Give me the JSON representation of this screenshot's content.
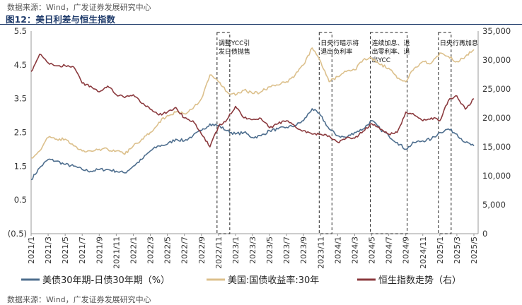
{
  "source_top": "数据来源：Wind，广发证券发展研究中心",
  "source_bottom": "数据来源：Wind，广发证券发展研究中心",
  "chart_data": {
    "type": "line",
    "title": "图12：美日利差与恒生指数",
    "x_tick_labels": [
      "2021/1",
      "2021/3",
      "2021/5",
      "2021/7",
      "2021/9",
      "2021/11",
      "2022/1",
      "2022/3",
      "2022/5",
      "2022/7",
      "2022/9",
      "2022/11",
      "2023/1",
      "2023/3",
      "2023/5",
      "2023/7",
      "2023/9",
      "2023/11",
      "2024/1",
      "2024/3",
      "2024/5",
      "2024/7",
      "2024/9",
      "2024/11",
      "2025/1",
      "2025/3",
      "2025/5"
    ],
    "y_left": {
      "ticks": [
        "5.5",
        "4.5",
        "3.5",
        "2.5",
        "1.5",
        "0.5",
        "(0.5)"
      ],
      "ylim": [
        -0.5,
        5.5
      ]
    },
    "y_right": {
      "ticks": [
        "35,000",
        "30,000",
        "25,000",
        "20,000",
        "15,000",
        "10,000",
        "5,000",
        "0"
      ],
      "ylim": [
        0,
        35000
      ]
    },
    "legend_position": "bottom",
    "colors": {
      "spread": "#4e6e8e",
      "us30y": "#dcc08c",
      "hsi": "#8b3a3e"
    },
    "series": [
      {
        "name": "美债30年期-日债30年期（%）",
        "axis": "left",
        "color": "#4e6e8e",
        "x": [
          "2021/1",
          "2021/2",
          "2021/3",
          "2021/4",
          "2021/5",
          "2021/6",
          "2021/7",
          "2021/8",
          "2021/9",
          "2021/10",
          "2021/11",
          "2021/12",
          "2022/1",
          "2022/2",
          "2022/3",
          "2022/4",
          "2022/5",
          "2022/6",
          "2022/7",
          "2022/8",
          "2022/9",
          "2022/10",
          "2022/11",
          "2022/12",
          "2023/1",
          "2023/2",
          "2023/3",
          "2023/4",
          "2023/5",
          "2023/6",
          "2023/7",
          "2023/8",
          "2023/9",
          "2023/10",
          "2023/11",
          "2023/12",
          "2024/1",
          "2024/2",
          "2024/3",
          "2024/4",
          "2024/5",
          "2024/6",
          "2024/7",
          "2024/8",
          "2024/9",
          "2024/10",
          "2024/11",
          "2024/12",
          "2025/1",
          "2025/2",
          "2025/3",
          "2025/4",
          "2025/5"
        ],
        "values": [
          1.1,
          1.45,
          1.7,
          1.65,
          1.55,
          1.5,
          1.4,
          1.35,
          1.4,
          1.4,
          1.35,
          1.3,
          1.5,
          1.7,
          1.95,
          2.1,
          2.15,
          2.3,
          2.25,
          2.4,
          2.55,
          2.75,
          2.7,
          2.55,
          2.45,
          2.5,
          2.35,
          2.4,
          2.55,
          2.6,
          2.65,
          2.7,
          2.85,
          3.2,
          3.0,
          2.6,
          2.4,
          2.35,
          2.5,
          2.6,
          2.85,
          2.6,
          2.4,
          2.2,
          2.0,
          2.2,
          2.25,
          2.3,
          2.5,
          2.6,
          2.45,
          2.2,
          2.1
        ]
      },
      {
        "name": "美国:国债收益率:30年",
        "axis": "left",
        "color": "#dcc08c",
        "x": [
          "2021/1",
          "2021/2",
          "2021/3",
          "2021/4",
          "2021/5",
          "2021/6",
          "2021/7",
          "2021/8",
          "2021/9",
          "2021/10",
          "2021/11",
          "2021/12",
          "2022/1",
          "2022/2",
          "2022/3",
          "2022/4",
          "2022/5",
          "2022/6",
          "2022/7",
          "2022/8",
          "2022/9",
          "2022/10",
          "2022/11",
          "2022/12",
          "2023/1",
          "2023/2",
          "2023/3",
          "2023/4",
          "2023/5",
          "2023/6",
          "2023/7",
          "2023/8",
          "2023/9",
          "2023/10",
          "2023/11",
          "2023/12",
          "2024/1",
          "2024/2",
          "2024/3",
          "2024/4",
          "2024/5",
          "2024/6",
          "2024/7",
          "2024/8",
          "2024/9",
          "2024/10",
          "2024/11",
          "2024/12",
          "2025/1",
          "2025/2",
          "2025/3",
          "2025/4",
          "2025/5"
        ],
        "values": [
          1.75,
          1.95,
          2.35,
          2.3,
          2.3,
          2.1,
          1.95,
          1.95,
          2.0,
          2.0,
          1.95,
          1.85,
          2.1,
          2.3,
          2.5,
          2.8,
          3.0,
          3.1,
          3.05,
          3.2,
          3.5,
          4.2,
          4.0,
          3.7,
          3.6,
          3.75,
          3.65,
          3.7,
          3.85,
          3.9,
          4.0,
          4.2,
          4.5,
          5.0,
          4.6,
          4.0,
          4.15,
          4.3,
          4.35,
          4.65,
          4.7,
          4.5,
          4.4,
          4.1,
          4.0,
          4.4,
          4.6,
          4.55,
          4.85,
          4.75,
          4.6,
          4.75,
          4.95
        ]
      },
      {
        "name": "恒生指数走势（右）",
        "axis": "right",
        "color": "#8b3a3e",
        "x": [
          "2021/1",
          "2021/2",
          "2021/3",
          "2021/4",
          "2021/5",
          "2021/6",
          "2021/7",
          "2021/8",
          "2021/9",
          "2021/10",
          "2021/11",
          "2021/12",
          "2022/1",
          "2022/2",
          "2022/3",
          "2022/4",
          "2022/5",
          "2022/6",
          "2022/7",
          "2022/8",
          "2022/9",
          "2022/10",
          "2022/11",
          "2022/12",
          "2023/1",
          "2023/2",
          "2023/3",
          "2023/4",
          "2023/5",
          "2023/6",
          "2023/7",
          "2023/8",
          "2023/9",
          "2023/10",
          "2023/11",
          "2023/12",
          "2024/1",
          "2024/2",
          "2024/3",
          "2024/4",
          "2024/5",
          "2024/6",
          "2024/7",
          "2024/8",
          "2024/9",
          "2024/10",
          "2024/11",
          "2024/12",
          "2025/1",
          "2025/2",
          "2025/3",
          "2025/4",
          "2025/5"
        ],
        "values": [
          28000,
          31000,
          29500,
          29000,
          29000,
          28800,
          26000,
          25500,
          24500,
          25500,
          24000,
          23500,
          24000,
          22500,
          21500,
          20500,
          21000,
          21800,
          20000,
          19500,
          17200,
          15000,
          18500,
          19700,
          22000,
          20000,
          19700,
          19900,
          18300,
          19000,
          19500,
          18500,
          17800,
          17200,
          17200,
          16900,
          15800,
          16500,
          16500,
          17700,
          19000,
          18000,
          17200,
          17500,
          21000,
          20500,
          19500,
          20000,
          19500,
          23000,
          23800,
          21500,
          23300
        ]
      }
    ],
    "annotations": [
      {
        "label": "调整YCC引发日债抛售",
        "x_from": "2022/11",
        "x_to": "2022/12"
      },
      {
        "label": "日央行暗示将退出负利率",
        "x_from": "2023/11",
        "x_to": "2023/12"
      },
      {
        "label": "连续加息、退出零利率、退出YCC",
        "x_from": "2024/5",
        "x_to": "2024/9"
      },
      {
        "label": "日央行再加息",
        "x_from": "2025/1",
        "x_to": "2025/2"
      }
    ]
  }
}
